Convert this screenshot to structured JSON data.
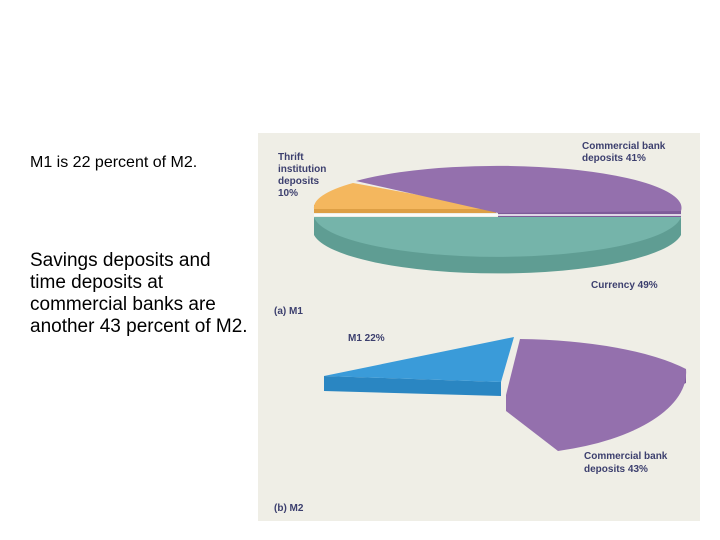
{
  "text": {
    "note1": "M1 is 22 percent of M2.",
    "note2": "Savings deposits and time deposits at commercial banks are another 43 percent of M2."
  },
  "chart_data": [
    {
      "type": "pie",
      "title": "(a) M1",
      "slices": [
        {
          "label_lines": [
            "Thrift",
            "institution",
            "deposits",
            "10%"
          ],
          "value": 10,
          "color": "#f4b75e"
        },
        {
          "label_lines": [
            "Commercial bank",
            "deposits 41%"
          ],
          "value": 41,
          "color": "#9470ad"
        },
        {
          "label_lines": [
            "Currency 49%"
          ],
          "value": 49,
          "color": "#75b4aa"
        }
      ]
    },
    {
      "type": "pie",
      "title": "(b) M2",
      "slices": [
        {
          "label_lines": [
            "M1 22%"
          ],
          "value": 22,
          "color": "#3a9bd9"
        },
        {
          "label_lines": [
            "Commercial bank",
            "deposits 43%"
          ],
          "value": 43,
          "color": "#9470ad"
        }
      ]
    }
  ]
}
